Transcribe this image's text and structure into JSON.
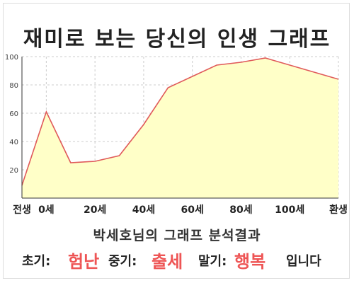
{
  "title": "재미로 보는 당신의 인생 그래프",
  "analysis": {
    "title": "박세호님의 그래프 분석결과",
    "early_label": "초기:",
    "early_value": "험난",
    "mid_label": "중기:",
    "mid_value": "출세",
    "late_label": "말기:",
    "late_value": "행복",
    "suffix": "입니다"
  },
  "colors": {
    "line": "#e05a5a",
    "fill": "#ffffc8",
    "highlight": "#ee5555",
    "axis": "#333333",
    "grid": "#cccccc"
  },
  "chart_data": {
    "type": "area",
    "x": [
      0,
      10,
      20,
      30,
      40,
      50,
      60,
      70,
      80,
      90,
      100,
      110
    ],
    "values": [
      9,
      61,
      25,
      26,
      30,
      52,
      78,
      86,
      94,
      96,
      99,
      94
    ],
    "xticks": [
      {
        "x": 0,
        "label": "전생"
      },
      {
        "x": 10,
        "label": "0세"
      },
      {
        "x": 30,
        "label": "20세"
      },
      {
        "x": 50,
        "label": "40세"
      },
      {
        "x": 70,
        "label": "60세"
      },
      {
        "x": 90,
        "label": "80세"
      },
      {
        "x": 110,
        "label": "100세"
      },
      {
        "x": 130,
        "label": "환생"
      }
    ],
    "yticks": [
      20,
      40,
      60,
      80,
      100
    ],
    "xlim": [
      0,
      130
    ],
    "ylim": [
      0,
      100
    ],
    "grid": "dashed"
  }
}
